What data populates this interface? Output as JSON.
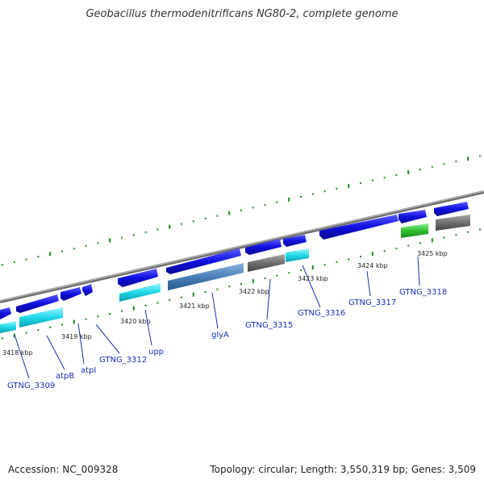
{
  "title": "Geobacillus thermodenitrificans NG80-2, complete genome",
  "footer": {
    "accession": "Accession: NC_009328",
    "topology": "Topology: circular; Length: 3,550,319 bp; Genes: 3,509"
  },
  "scale_labels": [
    "3418 kbp",
    "3419 kbp",
    "3420 kbp",
    "3421 kbp",
    "3422 kbp",
    "3423 kbp",
    "3424 kbp",
    "3425 kbp"
  ],
  "gene_labels": [
    "GTNG_3309",
    "atpB",
    "atpI",
    "GTNG_3312",
    "upp",
    "glyA",
    "GTNG_3315",
    "GTNG_3316",
    "GTNG_3317",
    "GTNG_3318"
  ],
  "colors": {
    "backbone": "#8c8c8c",
    "ticks": "#1a8a1a",
    "forward_gene": "#1010e0",
    "cyan_gene": "#20d8e8",
    "steel_gene": "#4a7fb8",
    "grey_gene": "#707070",
    "green_gene": "#30c030",
    "label": "#1a2fb8"
  },
  "icons": [
    "gene-arrow-icon"
  ]
}
